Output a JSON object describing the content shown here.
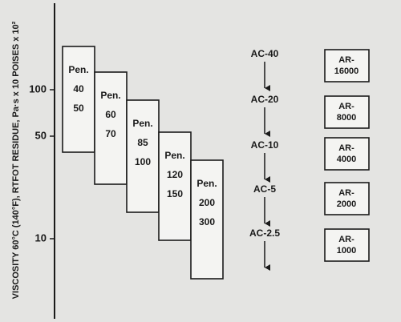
{
  "axis": {
    "label": "VISCOSITY 60°C (140°F), RTFOT RESIDUE, Pa·s x 10 POISES x 10²",
    "ticks": [
      "100",
      "50",
      "10"
    ]
  },
  "pen_grades": [
    {
      "label": "Pen.",
      "low": "40",
      "high": "50"
    },
    {
      "label": "Pen.",
      "low": "60",
      "high": "70"
    },
    {
      "label": "Pen.",
      "low": "85",
      "high": "100"
    },
    {
      "label": "Pen.",
      "low": "120",
      "high": "150"
    },
    {
      "label": "Pen.",
      "low": "200",
      "high": "300"
    }
  ],
  "ac_grades": [
    "AC-40",
    "AC-20",
    "AC-10",
    "AC-5",
    "AC-2.5"
  ],
  "ar_grades": [
    "AR-16000",
    "AR-8000",
    "AR-4000",
    "AR-2000",
    "AR-1000"
  ]
}
